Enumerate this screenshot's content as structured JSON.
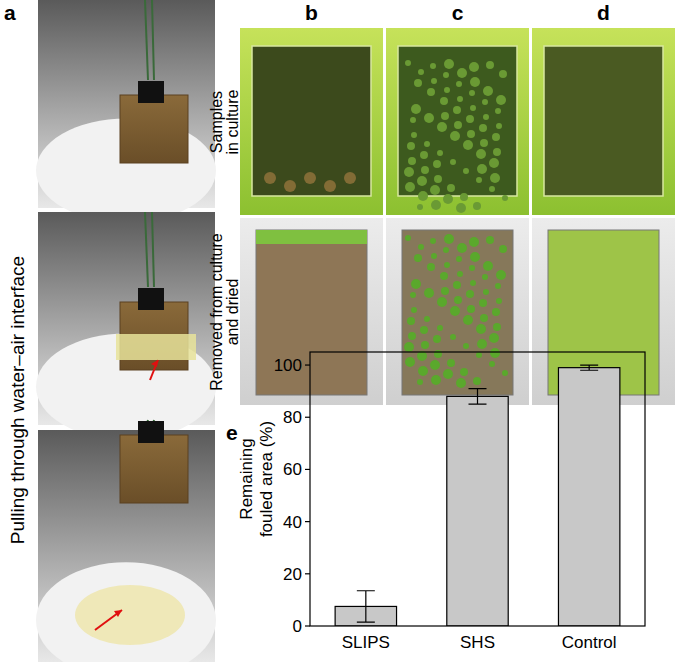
{
  "figure": {
    "panel_labels": [
      "a",
      "b",
      "c",
      "d",
      "e"
    ],
    "a_label": "Pulling through water–air interface",
    "row_labels": [
      [
        "Samples",
        "in culture"
      ],
      [
        "Removed from culture",
        "and dried"
      ]
    ]
  },
  "chart_data": {
    "type": "bar",
    "categories": [
      "SLIPS",
      "SHS",
      "Control"
    ],
    "values": [
      7.5,
      88,
      99
    ],
    "errors": [
      6,
      3,
      1
    ],
    "y_label": [
      "Remaining",
      "fouled area (%)"
    ],
    "ylim": [
      0,
      105
    ],
    "yticks": [
      0,
      20,
      40,
      60,
      80,
      100
    ],
    "color": "#c8c8c8",
    "grid": false
  }
}
